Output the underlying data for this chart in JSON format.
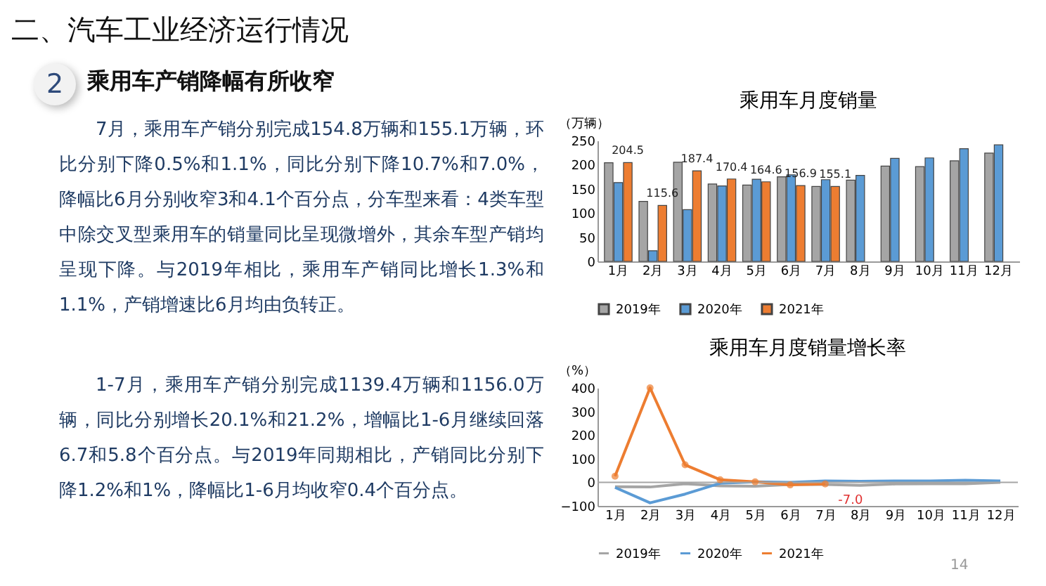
{
  "chart_data": [
    {
      "type": "other",
      "title": "二、汽车工业经济运行情况",
      "subtitle": "乘用车产销降幅有所收窄",
      "annotations": [
        "2",
        "7月，乘用车产销分别完成154.8万辆和155.1万辆，环比分别下降0.5%和1.1%，同比分别下降10.7%和7.0%，降幅比6月分别收窄3和4.1个百分点，分车型来看：4类车型中除交叉型乘用车的销量同比呈现微增外，其余车型产销均呈现下降。与2019年相比，乘用车产销同比增长1.3%和1.1%，产销增速比6月均由负转正。",
        "1-7月，乘用车产销分别完成1139.4万辆和1156.0万辆，同比分别增长20.1%和21.2%，增幅比1-6月继续回落6.7和5.8个百分点。与2019年同期相比，产销同比分别下降1.2%和1%，降幅比1-6月均收窄0.4个百分点。",
        "14"
      ]
    },
    {
      "type": "bar",
      "title": "乘用车月度销量",
      "ylabel": "（万辆）",
      "categories": [
        "1月",
        "2月",
        "3月",
        "4月",
        "5月",
        "6月",
        "7月",
        "8月",
        "9月",
        "10月",
        "11月",
        "12月"
      ],
      "series": [
        {
          "name": "2019年",
          "color": "#a5a5a5",
          "values": [
            204,
            124,
            205,
            160,
            158,
            175,
            155,
            168,
            197,
            196,
            208,
            224
          ]
        },
        {
          "name": "2020年",
          "color": "#5b9bd5",
          "values": [
            163,
            22,
            107,
            156,
            170,
            179,
            169,
            178,
            213,
            214,
            233,
            241
          ]
        },
        {
          "name": "2021年",
          "color": "#ed7d31",
          "values": [
            204.5,
            115.6,
            187.4,
            170.4,
            164.6,
            156.9,
            155.1,
            null,
            null,
            null,
            null,
            null
          ],
          "value_labels": [
            "204.5",
            "115.6",
            "187.4",
            "170.4",
            "164.6",
            "156.9",
            "155.1",
            null,
            null,
            null,
            null,
            null
          ]
        }
      ],
      "ylim": [
        0,
        250
      ],
      "yticks": [
        0,
        50,
        100,
        150,
        200,
        250
      ],
      "grid": false,
      "legend": "bottom"
    },
    {
      "type": "line",
      "title": "乘用车月度销量增长率",
      "ylabel": "（%）",
      "categories": [
        "1月",
        "2月",
        "3月",
        "4月",
        "5月",
        "6月",
        "7月",
        "8月",
        "9月",
        "10月",
        "11月",
        "12月"
      ],
      "series": [
        {
          "name": "2019年",
          "color": "#a5a5a5",
          "marker": "none",
          "values": [
            -19,
            -20,
            -6,
            -15,
            -17,
            -9,
            -9,
            -13,
            -7,
            -6,
            -6,
            0
          ]
        },
        {
          "name": "2020年",
          "color": "#5b9bd5",
          "marker": "none",
          "values": [
            -22,
            -87,
            -50,
            -4,
            2,
            0,
            6,
            4,
            6,
            6,
            9,
            6
          ]
        },
        {
          "name": "2021年",
          "color": "#ed7d31",
          "marker": "circle",
          "values": [
            26,
            400,
            74,
            11,
            2,
            -11,
            -7.0,
            null,
            null,
            null,
            null,
            null
          ],
          "value_labels": [
            null,
            null,
            null,
            null,
            null,
            null,
            "-7.0",
            null,
            null,
            null,
            null,
            null
          ]
        }
      ],
      "ylim": [
        -100,
        400
      ],
      "yticks": [
        -100,
        0,
        100,
        200,
        300,
        400
      ],
      "ref_lines": [
        {
          "axis": "y",
          "value": 0,
          "color": "#a6a6a6"
        }
      ],
      "grid": false,
      "legend": "bottom"
    }
  ]
}
